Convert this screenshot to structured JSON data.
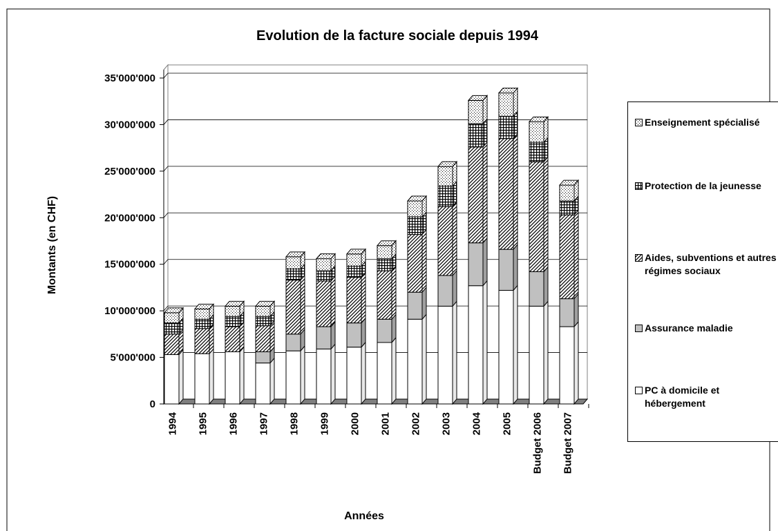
{
  "chart_data": {
    "type": "stacked_bar_3d",
    "title": "Evolution de la facture sociale depuis 1994",
    "x_label": "Années",
    "y_label": "Montants (en CHF)",
    "categories": [
      "1994",
      "1995",
      "1996",
      "1997",
      "1998",
      "1999",
      "2000",
      "2001",
      "2002",
      "2003",
      "2004",
      "2005",
      "Budget 2006",
      "Budget 2007"
    ],
    "series": [
      {
        "name": "PC à domicile et hébergement",
        "color": "#ffffff",
        "values": [
          5300000,
          5400000,
          5600000,
          4400000,
          5700000,
          5900000,
          6100000,
          6600000,
          9100000,
          10500000,
          12700000,
          12200000,
          10500000,
          8300000
        ]
      },
      {
        "name": "Assurance maladie",
        "color": "#c0c0c0",
        "values": [
          0,
          0,
          0,
          1200000,
          1800000,
          2400000,
          2600000,
          2500000,
          2900000,
          3300000,
          4600000,
          4400000,
          3700000,
          3000000
        ]
      },
      {
        "name": "Aides, subventions et autres régimes sociaux",
        "color": "#808080",
        "values": [
          2200000,
          2700000,
          2700000,
          2800000,
          5800000,
          4900000,
          4900000,
          5200000,
          6200000,
          7400000,
          10300000,
          11900000,
          11800000,
          9000000
        ]
      },
      {
        "name": "Protection de la jeunesse",
        "color": "#404040",
        "values": [
          1200000,
          1000000,
          1100000,
          1000000,
          1200000,
          1100000,
          1200000,
          1300000,
          1900000,
          2200000,
          2500000,
          2400000,
          2100000,
          1500000
        ]
      },
      {
        "name": "Enseignement spécialisé",
        "color": "#a0a0a0",
        "values": [
          1100000,
          1100000,
          1100000,
          1100000,
          1300000,
          1300000,
          1300000,
          1400000,
          1700000,
          2100000,
          2500000,
          2500000,
          2200000,
          1700000
        ]
      }
    ],
    "ylim": [
      0,
      35000000
    ],
    "yticks": [
      0,
      {
        "value": 5000000,
        "label": "5'000'000"
      },
      {
        "value": 10000000,
        "label": "10'000'000"
      },
      {
        "value": 15000000,
        "label": "15'000'000"
      },
      {
        "value": 20000000,
        "label": "20'000'000"
      },
      {
        "value": 25000000,
        "label": "25'000'000"
      },
      {
        "value": 30000000,
        "label": "30'000'000"
      },
      {
        "value": 35000000,
        "label": "35'000'000"
      }
    ],
    "grid": true,
    "legend": "right"
  }
}
